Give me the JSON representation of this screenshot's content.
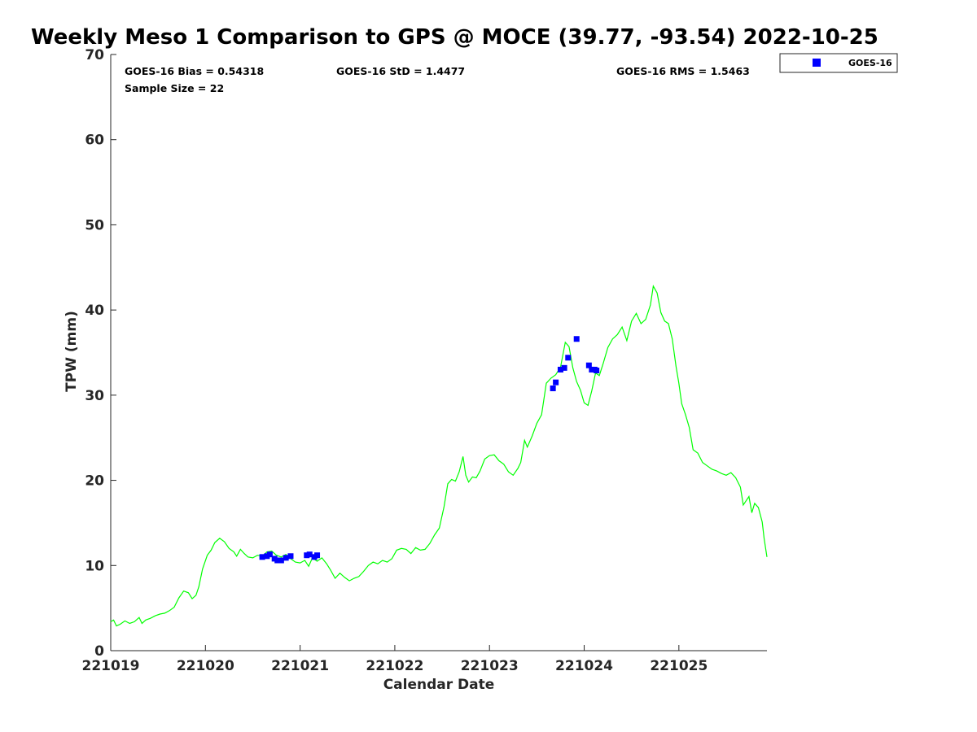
{
  "chart_data": {
    "type": "line",
    "title": "Weekly Meso 1 Comparison to GPS @ MOCE (39.77, -93.54) 2022-10-25",
    "xlabel": "Calendar Date",
    "ylabel": "TPW (mm)",
    "xlim": [
      221019,
      221025.93
    ],
    "ylim": [
      0,
      70
    ],
    "x_ticks": [
      221019,
      221020,
      221021,
      221022,
      221023,
      221024,
      221025
    ],
    "x_tick_labels": [
      "221019",
      "221020",
      "221021",
      "221022",
      "221023",
      "221024",
      "221025"
    ],
    "y_ticks": [
      0,
      10,
      20,
      30,
      40,
      50,
      60,
      70
    ],
    "y_tick_labels": [
      "0",
      "10",
      "20",
      "30",
      "40",
      "50",
      "60",
      "70"
    ],
    "grid": false,
    "legend_position": "top-right, outside plot",
    "stats": {
      "bias": "GOES-16 Bias = 0.54318",
      "std": "GOES-16 StD = 1.4477",
      "rms": "GOES-16 RMS = 1.5463",
      "sample": "Sample Size = 22"
    },
    "series": [
      {
        "kind": "line",
        "color": "#00ff00",
        "points": [
          [
            221019.0,
            3.4
          ],
          [
            221019.03,
            3.6
          ],
          [
            221019.06,
            2.9
          ],
          [
            221019.1,
            3.1
          ],
          [
            221019.15,
            3.5
          ],
          [
            221019.2,
            3.2
          ],
          [
            221019.25,
            3.4
          ],
          [
            221019.3,
            3.9
          ],
          [
            221019.33,
            3.2
          ],
          [
            221019.37,
            3.6
          ],
          [
            221019.42,
            3.8
          ],
          [
            221019.47,
            4.1
          ],
          [
            221019.52,
            4.3
          ],
          [
            221019.57,
            4.4
          ],
          [
            221019.62,
            4.7
          ],
          [
            221019.67,
            5.1
          ],
          [
            221019.72,
            6.2
          ],
          [
            221019.77,
            7.0
          ],
          [
            221019.82,
            6.8
          ],
          [
            221019.86,
            6.1
          ],
          [
            221019.9,
            6.5
          ],
          [
            221019.93,
            7.5
          ],
          [
            221019.97,
            9.6
          ],
          [
            221020.02,
            11.2
          ],
          [
            221020.06,
            11.8
          ],
          [
            221020.1,
            12.7
          ],
          [
            221020.15,
            13.2
          ],
          [
            221020.2,
            12.8
          ],
          [
            221020.25,
            12.0
          ],
          [
            221020.3,
            11.6
          ],
          [
            221020.33,
            11.1
          ],
          [
            221020.37,
            11.9
          ],
          [
            221020.41,
            11.4
          ],
          [
            221020.45,
            11.0
          ],
          [
            221020.5,
            10.9
          ],
          [
            221020.55,
            11.2
          ],
          [
            221020.6,
            11.1
          ],
          [
            221020.65,
            11.6
          ],
          [
            221020.7,
            11.7
          ],
          [
            221020.75,
            11.2
          ],
          [
            221020.8,
            11.0
          ],
          [
            221020.85,
            11.3
          ],
          [
            221020.9,
            10.8
          ],
          [
            221020.95,
            10.4
          ],
          [
            221021.0,
            10.3
          ],
          [
            221021.05,
            10.6
          ],
          [
            221021.09,
            9.9
          ],
          [
            221021.13,
            10.9
          ],
          [
            221021.18,
            10.5
          ],
          [
            221021.23,
            10.9
          ],
          [
            221021.28,
            10.2
          ],
          [
            221021.32,
            9.5
          ],
          [
            221021.37,
            8.5
          ],
          [
            221021.42,
            9.1
          ],
          [
            221021.47,
            8.6
          ],
          [
            221021.52,
            8.2
          ],
          [
            221021.57,
            8.5
          ],
          [
            221021.62,
            8.7
          ],
          [
            221021.67,
            9.3
          ],
          [
            221021.72,
            10.0
          ],
          [
            221021.77,
            10.4
          ],
          [
            221021.82,
            10.2
          ],
          [
            221021.87,
            10.6
          ],
          [
            221021.92,
            10.4
          ],
          [
            221021.97,
            10.8
          ],
          [
            221022.02,
            11.8
          ],
          [
            221022.07,
            12.0
          ],
          [
            221022.12,
            11.9
          ],
          [
            221022.17,
            11.4
          ],
          [
            221022.22,
            12.1
          ],
          [
            221022.27,
            11.8
          ],
          [
            221022.32,
            11.9
          ],
          [
            221022.37,
            12.6
          ],
          [
            221022.42,
            13.6
          ],
          [
            221022.47,
            14.4
          ],
          [
            221022.52,
            16.9
          ],
          [
            221022.56,
            19.6
          ],
          [
            221022.6,
            20.1
          ],
          [
            221022.64,
            19.9
          ],
          [
            221022.68,
            21.0
          ],
          [
            221022.72,
            22.8
          ],
          [
            221022.75,
            20.6
          ],
          [
            221022.78,
            19.8
          ],
          [
            221022.82,
            20.4
          ],
          [
            221022.86,
            20.3
          ],
          [
            221022.9,
            21.1
          ],
          [
            221022.95,
            22.5
          ],
          [
            221023.0,
            22.9
          ],
          [
            221023.05,
            23.0
          ],
          [
            221023.1,
            22.3
          ],
          [
            221023.15,
            21.9
          ],
          [
            221023.2,
            21.0
          ],
          [
            221023.25,
            20.6
          ],
          [
            221023.3,
            21.4
          ],
          [
            221023.33,
            22.1
          ],
          [
            221023.37,
            24.7
          ],
          [
            221023.4,
            23.9
          ],
          [
            221023.45,
            25.2
          ],
          [
            221023.5,
            26.7
          ],
          [
            221023.55,
            27.7
          ],
          [
            221023.6,
            31.4
          ],
          [
            221023.65,
            32.0
          ],
          [
            221023.7,
            32.4
          ],
          [
            221023.75,
            33.3
          ],
          [
            221023.8,
            36.2
          ],
          [
            221023.84,
            35.7
          ],
          [
            221023.88,
            33.2
          ],
          [
            221023.92,
            31.6
          ],
          [
            221023.96,
            30.6
          ],
          [
            221024.0,
            29.1
          ],
          [
            221024.04,
            28.8
          ],
          [
            221024.08,
            30.5
          ],
          [
            221024.12,
            32.6
          ],
          [
            221024.16,
            32.3
          ],
          [
            221024.2,
            33.7
          ],
          [
            221024.25,
            35.6
          ],
          [
            221024.3,
            36.6
          ],
          [
            221024.35,
            37.1
          ],
          [
            221024.4,
            38.0
          ],
          [
            221024.45,
            36.4
          ],
          [
            221024.5,
            38.7
          ],
          [
            221024.55,
            39.6
          ],
          [
            221024.6,
            38.4
          ],
          [
            221024.65,
            38.9
          ],
          [
            221024.7,
            40.6
          ],
          [
            221024.73,
            42.8
          ],
          [
            221024.77,
            42.0
          ],
          [
            221024.81,
            39.7
          ],
          [
            221024.85,
            38.7
          ],
          [
            221024.89,
            38.4
          ],
          [
            221024.93,
            36.6
          ],
          [
            221024.97,
            33.4
          ],
          [
            221025.0,
            31.4
          ],
          [
            221025.03,
            29.0
          ],
          [
            221025.07,
            27.7
          ],
          [
            221025.11,
            26.2
          ],
          [
            221025.15,
            23.6
          ],
          [
            221025.2,
            23.2
          ],
          [
            221025.25,
            22.1
          ],
          [
            221025.3,
            21.7
          ],
          [
            221025.35,
            21.3
          ],
          [
            221025.4,
            21.1
          ],
          [
            221025.45,
            20.8
          ],
          [
            221025.5,
            20.6
          ],
          [
            221025.55,
            20.9
          ],
          [
            221025.6,
            20.3
          ],
          [
            221025.65,
            19.2
          ],
          [
            221025.68,
            17.1
          ],
          [
            221025.71,
            17.6
          ],
          [
            221025.74,
            18.1
          ],
          [
            221025.77,
            16.2
          ],
          [
            221025.8,
            17.3
          ],
          [
            221025.84,
            16.8
          ],
          [
            221025.88,
            15.1
          ],
          [
            221025.9,
            13.2
          ],
          [
            221025.93,
            11.0
          ]
        ]
      },
      {
        "name": "GOES-16",
        "kind": "scatter",
        "color": "#0000ff",
        "points": [
          [
            221020.6,
            11.0
          ],
          [
            221020.65,
            11.1
          ],
          [
            221020.68,
            11.3
          ],
          [
            221020.73,
            10.8
          ],
          [
            221020.76,
            10.6
          ],
          [
            221020.8,
            10.6
          ],
          [
            221020.85,
            10.9
          ],
          [
            221020.9,
            11.1
          ],
          [
            221021.07,
            11.2
          ],
          [
            221021.1,
            11.3
          ],
          [
            221021.15,
            11.0
          ],
          [
            221021.18,
            11.2
          ],
          [
            221023.67,
            30.8
          ],
          [
            221023.7,
            31.5
          ],
          [
            221023.75,
            33.0
          ],
          [
            221023.79,
            33.2
          ],
          [
            221023.83,
            34.4
          ],
          [
            221023.92,
            36.6
          ],
          [
            221024.05,
            33.5
          ],
          [
            221024.08,
            33.0
          ],
          [
            221024.11,
            33.0
          ],
          [
            221024.13,
            32.9
          ]
        ]
      }
    ]
  }
}
